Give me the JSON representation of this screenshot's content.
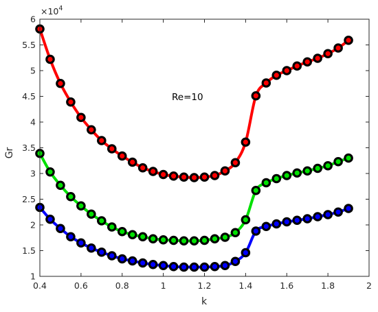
{
  "chart_data": {
    "type": "line",
    "xlabel": "k",
    "ylabel": "Gr",
    "xlim": [
      0.4,
      2.0
    ],
    "ylim": [
      10000,
      60000
    ],
    "x_ticks": [
      "0.4",
      "0.6",
      "0.8",
      "1",
      "1.2",
      "1.4",
      "1.6",
      "1.8",
      "2"
    ],
    "y_ticks": [
      "1",
      "1.5",
      "2",
      "2.5",
      "3",
      "3.5",
      "4",
      "4.5",
      "5",
      "5.5",
      "6"
    ],
    "y_multiplier": "×10",
    "y_multiplier_exp": "4",
    "annotation": "Re=10",
    "grid": false,
    "marker": "black-circle",
    "x": [
      0.4,
      0.45,
      0.5,
      0.55,
      0.6,
      0.65,
      0.7,
      0.75,
      0.8,
      0.85,
      0.9,
      0.95,
      1.0,
      1.05,
      1.1,
      1.15,
      1.2,
      1.25,
      1.3,
      1.35,
      1.4,
      1.45,
      1.5,
      1.55,
      1.6,
      1.65,
      1.7,
      1.75,
      1.8,
      1.85,
      1.9
    ],
    "series": [
      {
        "color": "#ff0000",
        "values": [
          58100,
          52200,
          47500,
          43900,
          40900,
          38500,
          36400,
          34800,
          33400,
          32200,
          31100,
          30400,
          29800,
          29500,
          29300,
          29200,
          29300,
          29600,
          30500,
          32100,
          36100,
          45100,
          47600,
          49100,
          50000,
          50900,
          51700,
          52400,
          53300,
          54400,
          55900
        ]
      },
      {
        "color": "#00e000",
        "values": [
          33900,
          30300,
          27700,
          25500,
          23700,
          22100,
          20800,
          19600,
          18700,
          18100,
          17700,
          17300,
          17100,
          17000,
          16900,
          16900,
          17000,
          17300,
          17600,
          18500,
          21000,
          26700,
          28200,
          29000,
          29600,
          30100,
          30500,
          31000,
          31500,
          32300,
          33000
        ]
      },
      {
        "color": "#0000ff",
        "values": [
          23400,
          21100,
          19300,
          17700,
          16500,
          15500,
          14700,
          14000,
          13400,
          13000,
          12600,
          12300,
          12100,
          11900,
          11800,
          11800,
          11800,
          11900,
          12100,
          12900,
          14600,
          18800,
          19700,
          20200,
          20600,
          20900,
          21200,
          21600,
          22000,
          22500,
          23200
        ]
      }
    ]
  }
}
